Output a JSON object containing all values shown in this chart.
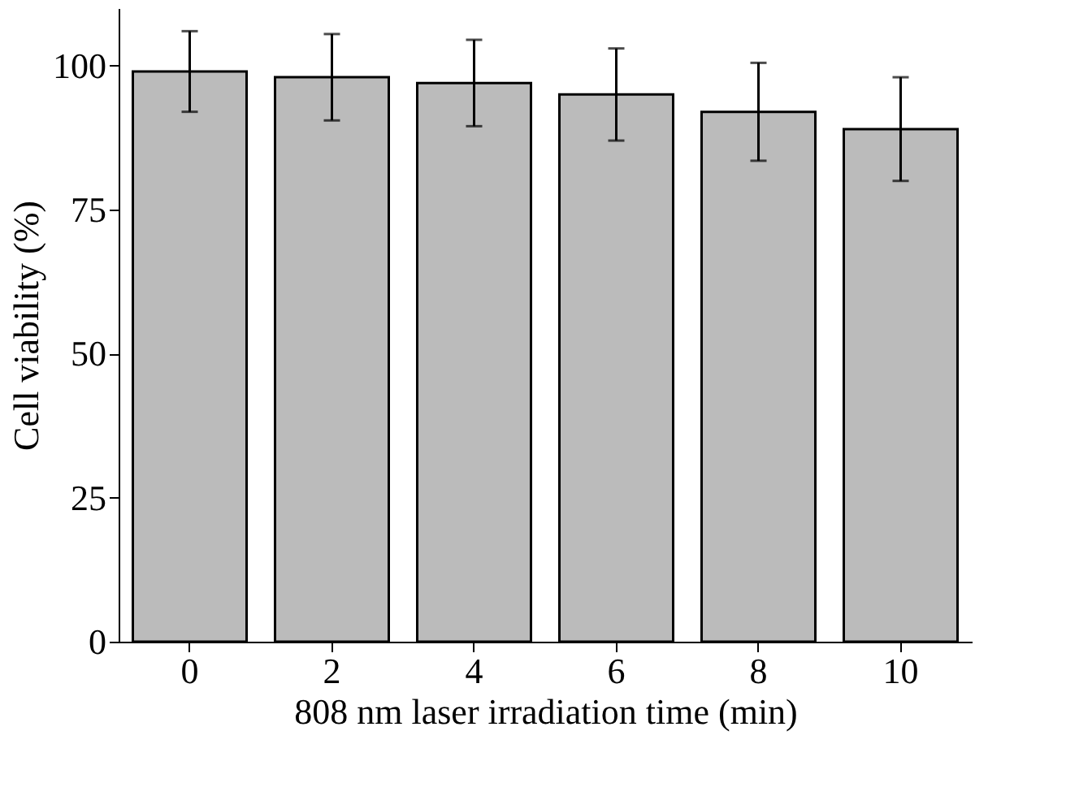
{
  "chart_data": {
    "type": "bar",
    "xlabel": "808 nm laser irradiation time (min)",
    "ylabel": "Cell viability (%)",
    "categories": [
      "0",
      "2",
      "4",
      "6",
      "8",
      "10"
    ],
    "values": [
      99,
      98,
      97,
      95,
      92,
      89
    ],
    "errors": [
      7,
      7.5,
      7.5,
      8,
      8.5,
      9
    ],
    "color": "#bbbbbb",
    "ylim": [
      0,
      110
    ],
    "yticks": [
      0,
      25,
      50,
      75,
      100
    ],
    "grid": false
  }
}
